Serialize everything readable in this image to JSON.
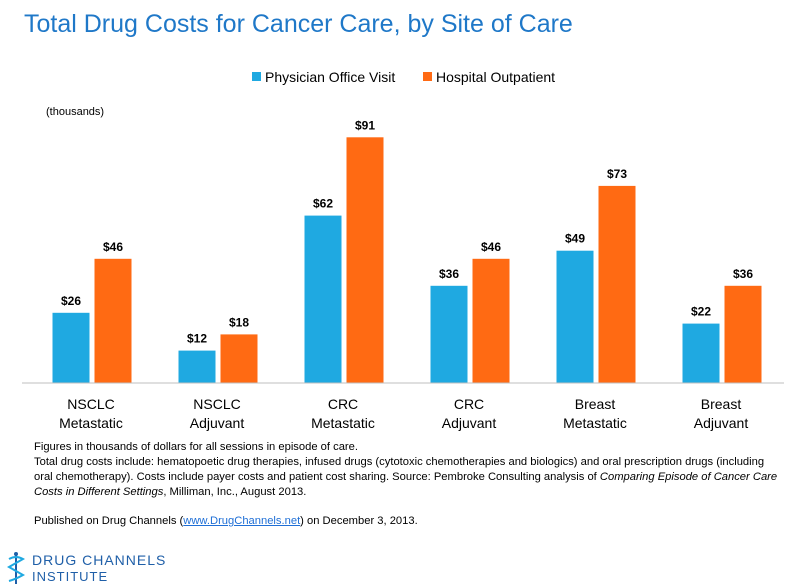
{
  "header": {
    "title": "Total Drug Costs for Cancer Care, by Site of Care"
  },
  "units_note": "(thousands)",
  "colors": {
    "office": "#1fa9e1",
    "hospital": "#ff6a13",
    "title": "#1f78c8"
  },
  "chart_data": {
    "type": "bar",
    "title": "Total Drug Costs for Cancer Care, by Site of Care",
    "categories": [
      [
        "NSCLC",
        "Metastatic"
      ],
      [
        "NSCLC",
        "Adjuvant"
      ],
      [
        "CRC",
        "Metastatic"
      ],
      [
        "CRC",
        "Adjuvant"
      ],
      [
        "Breast",
        "Metastatic"
      ],
      [
        "Breast",
        "Adjuvant"
      ]
    ],
    "series": [
      {
        "name": "Physician Office Visit",
        "values": [
          26,
          12,
          62,
          36,
          49,
          22
        ],
        "labels": [
          "$26",
          "$12",
          "$62",
          "$36",
          "$49",
          "$22"
        ],
        "color": "#1fa9e1"
      },
      {
        "name": "Hospital Outpatient",
        "values": [
          46,
          18,
          91,
          46,
          73,
          36
        ],
        "labels": [
          "$46",
          "$18",
          "$91",
          "$46",
          "$73",
          "$36"
        ],
        "color": "#ff6a13"
      }
    ],
    "ylabel": "(thousands)",
    "ylim": [
      0,
      100
    ],
    "legend_position": "top-center",
    "grid": false
  },
  "footnotes": {
    "line1": "Figures in thousands of dollars for all sessions in episode of care.",
    "line2_pre": "Total drug costs include: hematopoetic drug therapies, infused drugs (cytotoxic chemotherapies and biologics)  and oral prescription drugs (including oral chemotherapy). Costs include payer  costs and patient cost sharing. Source: Pembroke Consulting analysis of ",
    "line2_italic": "Comparing Episode of Cancer Care Costs in Different Settings",
    "line2_post": ", Milliman, Inc., August 2013.",
    "published_pre": "Published on Drug Channels (",
    "published_link": "www.DrugChannels.net",
    "published_post": ") on December 3, 2013."
  },
  "logo": {
    "line1": "DRUG CHANNELS",
    "line2": "INSTITUTE"
  }
}
